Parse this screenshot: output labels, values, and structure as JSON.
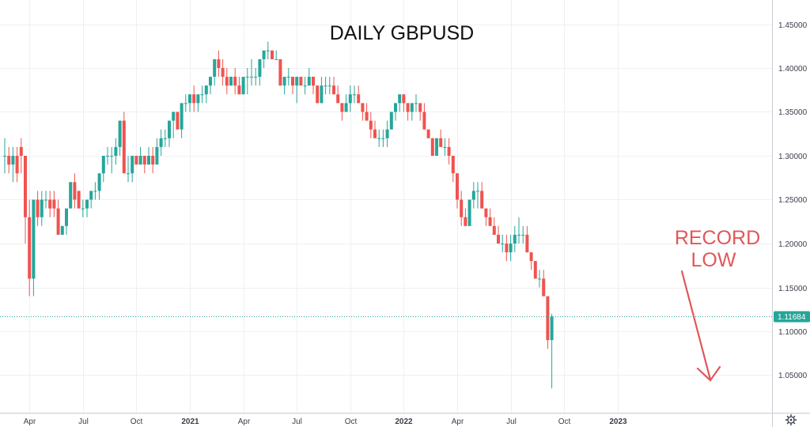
{
  "chart_data": {
    "type": "candlestick",
    "title": "DAILY GBPUSD",
    "annotation": {
      "line1": "RECORD",
      "line2": "LOW"
    },
    "ylim": [
      1.02,
      1.48
    ],
    "y_ticks": [
      "1.45000",
      "1.40000",
      "1.35000",
      "1.30000",
      "1.25000",
      "1.20000",
      "1.15000",
      "1.10000",
      "1.05000"
    ],
    "x_ticks": [
      {
        "label": "Apr",
        "bold": false,
        "index": 6
      },
      {
        "label": "Jul",
        "bold": false,
        "index": 19
      },
      {
        "label": "Oct",
        "bold": false,
        "index": 32
      },
      {
        "label": "2021",
        "bold": true,
        "index": 45
      },
      {
        "label": "Apr",
        "bold": false,
        "index": 58
      },
      {
        "label": "Jul",
        "bold": false,
        "index": 71
      },
      {
        "label": "Oct",
        "bold": false,
        "index": 84
      },
      {
        "label": "2022",
        "bold": true,
        "index": 97
      },
      {
        "label": "Apr",
        "bold": false,
        "index": 110
      },
      {
        "label": "Jul",
        "bold": false,
        "index": 123
      },
      {
        "label": "Oct",
        "bold": false,
        "index": 136
      },
      {
        "label": "2023",
        "bold": true,
        "index": 149
      }
    ],
    "last_price": "1.11684",
    "last_value": 1.1168,
    "colors": {
      "up": "#26a69a",
      "down": "#ef5350",
      "grid": "#eef0f3",
      "axis": "#c9ccd3",
      "annotation": "#e15759"
    },
    "grid": true,
    "ohlc": [
      [
        1.3,
        1.32,
        1.28,
        1.3
      ],
      [
        1.3,
        1.31,
        1.28,
        1.29
      ],
      [
        1.29,
        1.31,
        1.27,
        1.3
      ],
      [
        1.3,
        1.31,
        1.27,
        1.28
      ],
      [
        1.31,
        1.32,
        1.28,
        1.3
      ],
      [
        1.3,
        1.3,
        1.2,
        1.23
      ],
      [
        1.23,
        1.25,
        1.14,
        1.16
      ],
      [
        1.16,
        1.25,
        1.14,
        1.25
      ],
      [
        1.25,
        1.26,
        1.22,
        1.23
      ],
      [
        1.23,
        1.26,
        1.22,
        1.25
      ],
      [
        1.25,
        1.26,
        1.24,
        1.25
      ],
      [
        1.25,
        1.26,
        1.23,
        1.24
      ],
      [
        1.25,
        1.26,
        1.23,
        1.24
      ],
      [
        1.24,
        1.25,
        1.21,
        1.21
      ],
      [
        1.21,
        1.22,
        1.21,
        1.22
      ],
      [
        1.22,
        1.24,
        1.21,
        1.24
      ],
      [
        1.24,
        1.27,
        1.24,
        1.27
      ],
      [
        1.27,
        1.28,
        1.24,
        1.25
      ],
      [
        1.26,
        1.26,
        1.24,
        1.24
      ],
      [
        1.24,
        1.25,
        1.23,
        1.24
      ],
      [
        1.24,
        1.25,
        1.23,
        1.25
      ],
      [
        1.25,
        1.26,
        1.24,
        1.26
      ],
      [
        1.26,
        1.27,
        1.25,
        1.26
      ],
      [
        1.26,
        1.28,
        1.25,
        1.28
      ],
      [
        1.28,
        1.3,
        1.27,
        1.3
      ],
      [
        1.3,
        1.31,
        1.29,
        1.3
      ],
      [
        1.3,
        1.31,
        1.28,
        1.3
      ],
      [
        1.3,
        1.32,
        1.29,
        1.31
      ],
      [
        1.31,
        1.34,
        1.3,
        1.34
      ],
      [
        1.34,
        1.35,
        1.28,
        1.28
      ],
      [
        1.28,
        1.3,
        1.27,
        1.28
      ],
      [
        1.28,
        1.3,
        1.27,
        1.3
      ],
      [
        1.3,
        1.3,
        1.29,
        1.29
      ],
      [
        1.29,
        1.31,
        1.29,
        1.3
      ],
      [
        1.3,
        1.3,
        1.28,
        1.29
      ],
      [
        1.29,
        1.31,
        1.29,
        1.3
      ],
      [
        1.3,
        1.31,
        1.28,
        1.29
      ],
      [
        1.29,
        1.32,
        1.29,
        1.31
      ],
      [
        1.31,
        1.33,
        1.3,
        1.32
      ],
      [
        1.32,
        1.33,
        1.31,
        1.32
      ],
      [
        1.32,
        1.34,
        1.31,
        1.34
      ],
      [
        1.34,
        1.35,
        1.32,
        1.35
      ],
      [
        1.35,
        1.35,
        1.33,
        1.33
      ],
      [
        1.33,
        1.36,
        1.32,
        1.36
      ],
      [
        1.36,
        1.37,
        1.35,
        1.36
      ],
      [
        1.36,
        1.37,
        1.35,
        1.37
      ],
      [
        1.37,
        1.38,
        1.35,
        1.36
      ],
      [
        1.36,
        1.37,
        1.35,
        1.37
      ],
      [
        1.37,
        1.38,
        1.36,
        1.37
      ],
      [
        1.37,
        1.38,
        1.36,
        1.38
      ],
      [
        1.38,
        1.39,
        1.37,
        1.39
      ],
      [
        1.39,
        1.41,
        1.38,
        1.41
      ],
      [
        1.41,
        1.42,
        1.39,
        1.4
      ],
      [
        1.4,
        1.41,
        1.38,
        1.39
      ],
      [
        1.39,
        1.4,
        1.37,
        1.38
      ],
      [
        1.38,
        1.39,
        1.38,
        1.39
      ],
      [
        1.39,
        1.4,
        1.37,
        1.38
      ],
      [
        1.38,
        1.39,
        1.37,
        1.37
      ],
      [
        1.37,
        1.39,
        1.37,
        1.39
      ],
      [
        1.39,
        1.4,
        1.37,
        1.39
      ],
      [
        1.39,
        1.41,
        1.38,
        1.39
      ],
      [
        1.39,
        1.4,
        1.38,
        1.39
      ],
      [
        1.39,
        1.41,
        1.38,
        1.41
      ],
      [
        1.41,
        1.42,
        1.4,
        1.42
      ],
      [
        1.42,
        1.43,
        1.41,
        1.42
      ],
      [
        1.42,
        1.42,
        1.41,
        1.41
      ],
      [
        1.41,
        1.42,
        1.41,
        1.41
      ],
      [
        1.41,
        1.41,
        1.38,
        1.38
      ],
      [
        1.38,
        1.39,
        1.37,
        1.39
      ],
      [
        1.39,
        1.4,
        1.38,
        1.39
      ],
      [
        1.39,
        1.39,
        1.37,
        1.38
      ],
      [
        1.38,
        1.39,
        1.36,
        1.39
      ],
      [
        1.39,
        1.39,
        1.38,
        1.38
      ],
      [
        1.38,
        1.39,
        1.37,
        1.38
      ],
      [
        1.38,
        1.4,
        1.38,
        1.39
      ],
      [
        1.39,
        1.39,
        1.37,
        1.38
      ],
      [
        1.38,
        1.38,
        1.36,
        1.36
      ],
      [
        1.36,
        1.39,
        1.36,
        1.38
      ],
      [
        1.38,
        1.39,
        1.37,
        1.38
      ],
      [
        1.38,
        1.39,
        1.37,
        1.38
      ],
      [
        1.38,
        1.39,
        1.37,
        1.37
      ],
      [
        1.37,
        1.38,
        1.36,
        1.36
      ],
      [
        1.36,
        1.36,
        1.34,
        1.35
      ],
      [
        1.35,
        1.37,
        1.35,
        1.36
      ],
      [
        1.36,
        1.38,
        1.35,
        1.37
      ],
      [
        1.37,
        1.38,
        1.36,
        1.37
      ],
      [
        1.37,
        1.38,
        1.36,
        1.36
      ],
      [
        1.36,
        1.36,
        1.34,
        1.35
      ],
      [
        1.35,
        1.36,
        1.34,
        1.34
      ],
      [
        1.34,
        1.35,
        1.32,
        1.33
      ],
      [
        1.33,
        1.34,
        1.32,
        1.32
      ],
      [
        1.32,
        1.33,
        1.31,
        1.32
      ],
      [
        1.32,
        1.33,
        1.31,
        1.32
      ],
      [
        1.32,
        1.34,
        1.31,
        1.33
      ],
      [
        1.33,
        1.35,
        1.33,
        1.35
      ],
      [
        1.35,
        1.36,
        1.34,
        1.36
      ],
      [
        1.36,
        1.37,
        1.35,
        1.37
      ],
      [
        1.37,
        1.37,
        1.35,
        1.36
      ],
      [
        1.36,
        1.36,
        1.34,
        1.35
      ],
      [
        1.35,
        1.36,
        1.34,
        1.36
      ],
      [
        1.36,
        1.37,
        1.35,
        1.36
      ],
      [
        1.36,
        1.36,
        1.34,
        1.35
      ],
      [
        1.35,
        1.36,
        1.33,
        1.33
      ],
      [
        1.33,
        1.33,
        1.32,
        1.32
      ],
      [
        1.32,
        1.32,
        1.3,
        1.3
      ],
      [
        1.3,
        1.32,
        1.3,
        1.32
      ],
      [
        1.32,
        1.33,
        1.31,
        1.31
      ],
      [
        1.31,
        1.32,
        1.3,
        1.31
      ],
      [
        1.31,
        1.32,
        1.29,
        1.3
      ],
      [
        1.3,
        1.3,
        1.27,
        1.28
      ],
      [
        1.28,
        1.28,
        1.24,
        1.25
      ],
      [
        1.25,
        1.26,
        1.22,
        1.23
      ],
      [
        1.23,
        1.24,
        1.22,
        1.22
      ],
      [
        1.22,
        1.25,
        1.22,
        1.25
      ],
      [
        1.25,
        1.27,
        1.24,
        1.26
      ],
      [
        1.26,
        1.27,
        1.24,
        1.26
      ],
      [
        1.26,
        1.27,
        1.24,
        1.24
      ],
      [
        1.24,
        1.24,
        1.22,
        1.23
      ],
      [
        1.23,
        1.24,
        1.22,
        1.22
      ],
      [
        1.22,
        1.23,
        1.21,
        1.21
      ],
      [
        1.21,
        1.22,
        1.2,
        1.2
      ],
      [
        1.2,
        1.21,
        1.19,
        1.2
      ],
      [
        1.2,
        1.21,
        1.18,
        1.19
      ],
      [
        1.19,
        1.21,
        1.18,
        1.2
      ],
      [
        1.2,
        1.22,
        1.19,
        1.21
      ],
      [
        1.21,
        1.23,
        1.2,
        1.21
      ],
      [
        1.21,
        1.22,
        1.2,
        1.21
      ],
      [
        1.21,
        1.22,
        1.19,
        1.19
      ],
      [
        1.19,
        1.19,
        1.17,
        1.18
      ],
      [
        1.18,
        1.18,
        1.16,
        1.16
      ],
      [
        1.16,
        1.17,
        1.15,
        1.16
      ],
      [
        1.16,
        1.17,
        1.14,
        1.14
      ],
      [
        1.14,
        1.14,
        1.08,
        1.09
      ],
      [
        1.09,
        1.12,
        1.035,
        1.1168
      ]
    ]
  }
}
